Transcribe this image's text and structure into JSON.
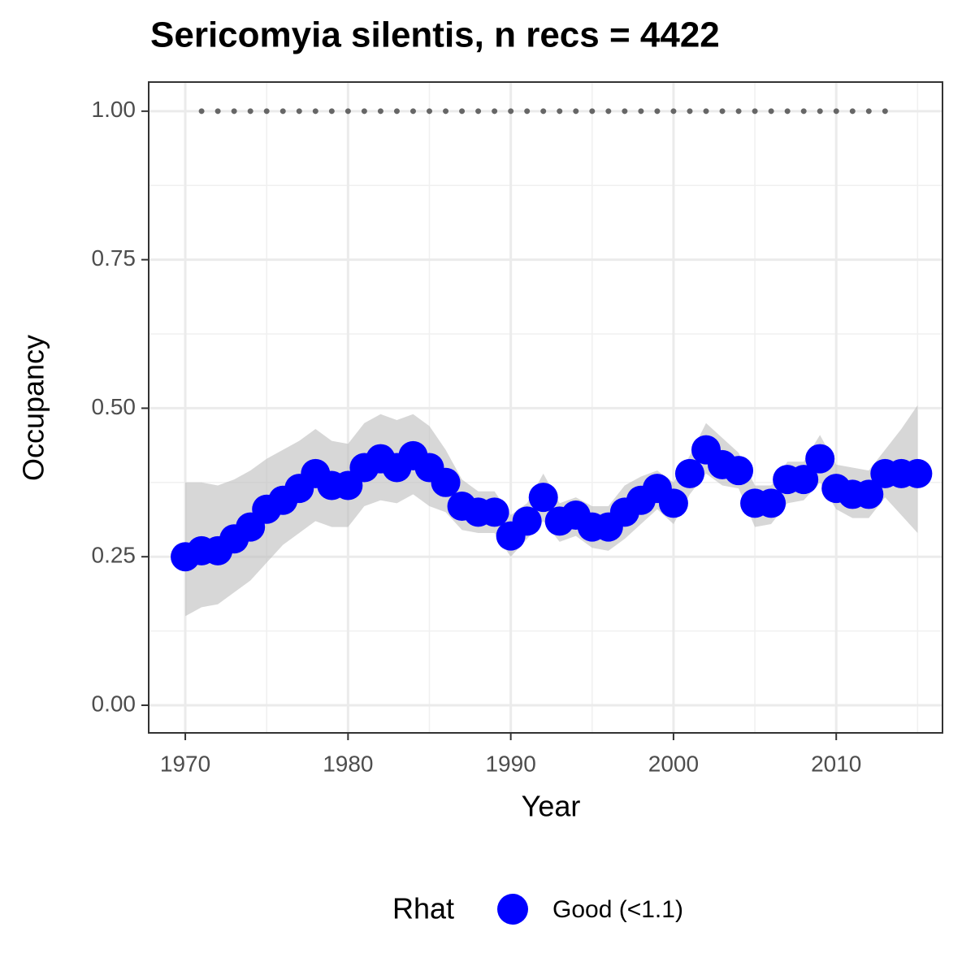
{
  "chart_data": {
    "type": "line",
    "title": "Sericomyia silentis, n recs = 4422",
    "x_label": "Year",
    "y_label": "Occupancy",
    "legend_title": "Rhat",
    "legend_position": "bottom",
    "grid": true,
    "xlim": [
      1967.75,
      2016.53
    ],
    "ylim": [
      -0.0465,
      1.049
    ],
    "xticks": [
      1970,
      1980,
      1990,
      2000,
      2010
    ],
    "minor_xticks": [
      1975,
      1985,
      1995,
      2005,
      2015
    ],
    "yticks": [
      {
        "value": 0,
        "label": "0.00"
      },
      {
        "value": 0.25,
        "label": "0.25"
      },
      {
        "value": 0.5,
        "label": "0.50"
      },
      {
        "value": 0.75,
        "label": "0.75"
      },
      {
        "value": 1,
        "label": "1.00"
      }
    ],
    "minor_yticks": [
      0.125,
      0.375,
      0.625,
      0.875
    ],
    "x": [
      1970,
      1971,
      1972,
      1973,
      1974,
      1975,
      1976,
      1977,
      1978,
      1979,
      1980,
      1981,
      1982,
      1983,
      1984,
      1985,
      1986,
      1987,
      1988,
      1989,
      1990,
      1991,
      1992,
      1993,
      1994,
      1995,
      1996,
      1997,
      1998,
      1999,
      2000,
      2001,
      2002,
      2003,
      2004,
      2005,
      2006,
      2007,
      2008,
      2009,
      2010,
      2011,
      2012,
      2013,
      2014,
      2015
    ],
    "series": [
      {
        "name": "Good (<1.1)",
        "color": "#0000ff",
        "values": [
          0.25,
          0.26,
          0.26,
          0.28,
          0.3,
          0.33,
          0.345,
          0.365,
          0.39,
          0.37,
          0.37,
          0.4,
          0.415,
          0.4,
          0.42,
          0.4,
          0.375,
          0.335,
          0.325,
          0.325,
          0.285,
          0.31,
          0.35,
          0.31,
          0.32,
          0.3,
          0.3,
          0.325,
          0.345,
          0.365,
          0.34,
          0.39,
          0.43,
          0.405,
          0.395,
          0.34,
          0.34,
          0.38,
          0.38,
          0.415,
          0.365,
          0.355,
          0.355,
          0.39,
          0.39,
          0.39
        ],
        "upper": [
          0.375,
          0.375,
          0.37,
          0.38,
          0.395,
          0.415,
          0.43,
          0.445,
          0.465,
          0.445,
          0.44,
          0.475,
          0.49,
          0.48,
          0.49,
          0.47,
          0.43,
          0.38,
          0.36,
          0.36,
          0.32,
          0.34,
          0.39,
          0.34,
          0.35,
          0.335,
          0.335,
          0.37,
          0.385,
          0.395,
          0.375,
          0.42,
          0.475,
          0.45,
          0.425,
          0.37,
          0.37,
          0.41,
          0.41,
          0.455,
          0.405,
          0.4,
          0.395,
          0.43,
          0.465,
          0.505
        ],
        "lower": [
          0.15,
          0.165,
          0.17,
          0.19,
          0.21,
          0.24,
          0.27,
          0.29,
          0.31,
          0.3,
          0.3,
          0.335,
          0.345,
          0.34,
          0.355,
          0.335,
          0.325,
          0.295,
          0.29,
          0.29,
          0.25,
          0.28,
          0.31,
          0.275,
          0.285,
          0.265,
          0.26,
          0.28,
          0.305,
          0.33,
          0.305,
          0.355,
          0.39,
          0.37,
          0.365,
          0.3,
          0.305,
          0.34,
          0.345,
          0.375,
          0.33,
          0.315,
          0.315,
          0.35,
          0.32,
          0.29
        ],
        "band_color": "#bdbdbd"
      }
    ],
    "reference": {
      "x": [
        1971,
        2014
      ],
      "values": [
        1,
        1
      ],
      "color": "#666666"
    }
  }
}
